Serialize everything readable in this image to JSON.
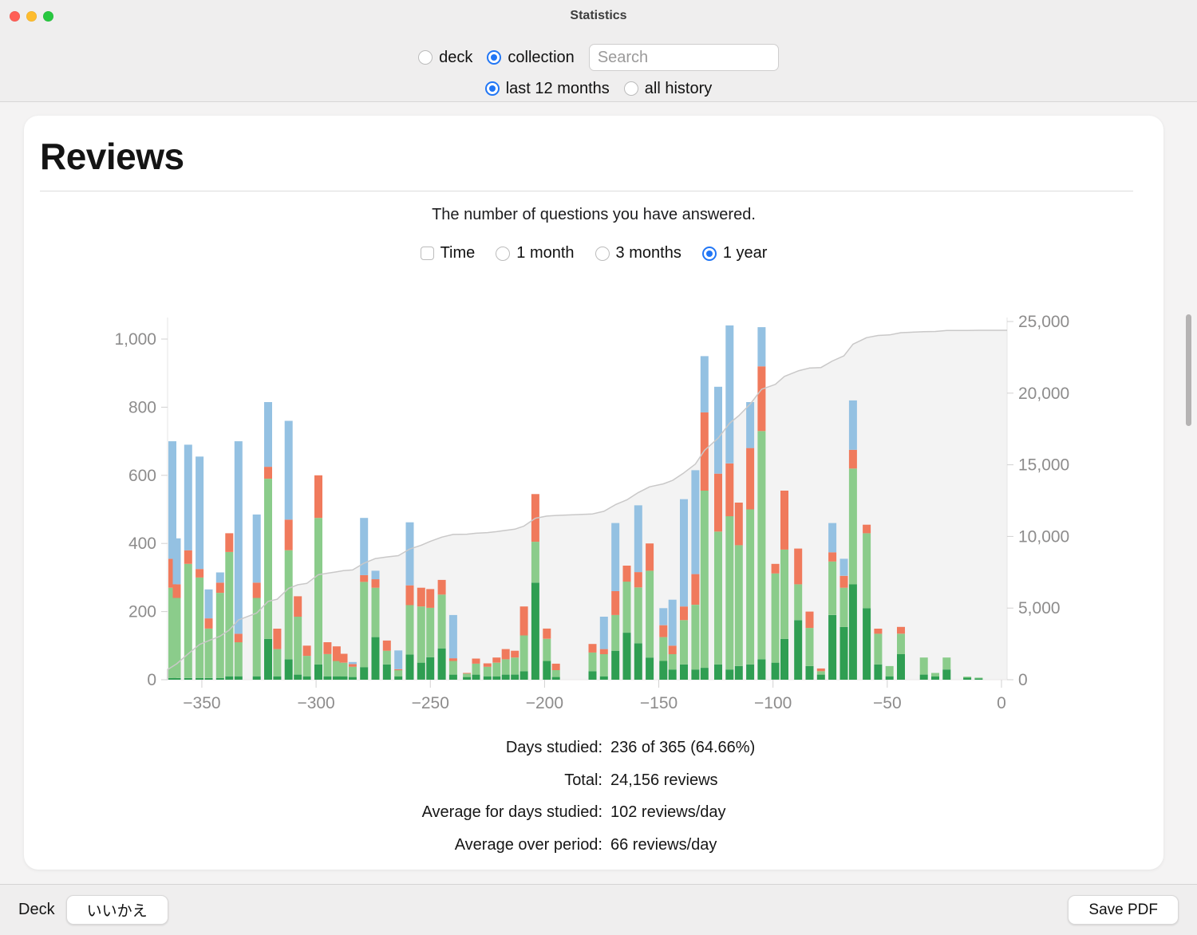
{
  "theme": {
    "accent": "#2176f5",
    "light_red": "#ff5f57",
    "light_yellow": "#febc2e",
    "light_green": "#28c840"
  },
  "window": {
    "title": "Statistics"
  },
  "toolbar": {
    "scope_options": [
      {
        "label": "deck",
        "selected": false
      },
      {
        "label": "collection",
        "selected": true
      }
    ],
    "search": {
      "placeholder": "Search",
      "value": ""
    },
    "range_options": [
      {
        "label": "last 12 months",
        "selected": true
      },
      {
        "label": "all history",
        "selected": false
      }
    ]
  },
  "card": {
    "title": "Reviews",
    "subtitle": "The number of questions you have answered.",
    "controls": {
      "time_checkbox": {
        "label": "Time",
        "checked": false
      },
      "period_options": [
        {
          "label": "1 month",
          "selected": false
        },
        {
          "label": "3 months",
          "selected": false
        },
        {
          "label": "1 year",
          "selected": true
        }
      ]
    },
    "stats": {
      "rows": [
        {
          "label": "Days studied:",
          "value": "236 of 365 (64.66%)"
        },
        {
          "label": "Total:",
          "value": "24,156 reviews"
        },
        {
          "label": "Average for days studied:",
          "value": "102 reviews/day"
        },
        {
          "label": "Average over period:",
          "value": "66 reviews/day"
        }
      ]
    }
  },
  "footer": {
    "deck_label": "Deck",
    "deck_name_button": "いいかえ",
    "save_pdf_button": "Save PDF"
  },
  "chart_data": {
    "type": "bar",
    "subtype": "stacked-bars-with-cumulative-line",
    "bar_format": [
      "day_offset",
      "mature",
      "young",
      "relearn",
      "learn"
    ],
    "series_order": [
      "mature",
      "young",
      "relearn",
      "learn"
    ],
    "series_colors": {
      "mature": "#2f9e52",
      "young": "#8bcc8b",
      "relearn": "#f07a5c",
      "learn": "#94c1e2"
    },
    "cumulative": {
      "line_color": "#c9c8c8",
      "area_fill": "#f3f3f3"
    },
    "axes": {
      "x": {
        "range": [
          -365,
          0
        ],
        "ticks": {
          "values": [
            -350,
            -300,
            -250,
            -200,
            -150,
            -100,
            -50,
            0
          ],
          "labels": [
            "−350",
            "−300",
            "−250",
            "−200",
            "−150",
            "−100",
            "−50",
            "0"
          ]
        }
      },
      "left": {
        "range": [
          0,
          1000
        ],
        "ticks": {
          "values": [
            0,
            200,
            400,
            600,
            800,
            1000
          ],
          "labels": [
            "0",
            "200",
            "400",
            "600",
            "800",
            "1,000"
          ]
        }
      },
      "right": {
        "range": [
          0,
          25000
        ],
        "ticks": {
          "values": [
            0,
            5000,
            10000,
            15000,
            20000,
            25000
          ],
          "labels": [
            "0",
            "5,000",
            "10,000",
            "15,000",
            "20,000",
            "25,000"
          ]
        }
      }
    },
    "bars": [
      [
        -365,
        5,
        265,
        85,
        345
      ],
      [
        -361,
        5,
        235,
        40,
        135
      ],
      [
        -356,
        5,
        335,
        40,
        310
      ],
      [
        -351,
        5,
        295,
        25,
        330
      ],
      [
        -347,
        5,
        145,
        30,
        85
      ],
      [
        -342,
        5,
        250,
        30,
        30
      ],
      [
        -338,
        10,
        365,
        55,
        0
      ],
      [
        -334,
        10,
        100,
        25,
        565
      ],
      [
        -326,
        10,
        230,
        45,
        200
      ],
      [
        -321,
        120,
        470,
        35,
        190
      ],
      [
        -317,
        10,
        80,
        60,
        0
      ],
      [
        -312,
        60,
        320,
        90,
        290
      ],
      [
        -308,
        15,
        170,
        60,
        0
      ],
      [
        -304,
        10,
        60,
        30,
        0
      ],
      [
        -299,
        45,
        430,
        125,
        0
      ],
      [
        -295,
        10,
        65,
        35,
        0
      ],
      [
        -291,
        10,
        45,
        43,
        0
      ],
      [
        -288,
        10,
        40,
        26,
        0
      ],
      [
        -284,
        8,
        30,
        8,
        6
      ],
      [
        -279,
        37,
        250,
        20,
        168
      ],
      [
        -274,
        125,
        145,
        25,
        25
      ],
      [
        -269,
        45,
        40,
        30,
        0
      ],
      [
        -264,
        10,
        18,
        3,
        55
      ],
      [
        -259,
        74,
        145,
        58,
        185
      ],
      [
        -254,
        50,
        165,
        55,
        0
      ],
      [
        -250,
        66,
        145,
        55,
        0
      ],
      [
        -245,
        92,
        158,
        43,
        0
      ],
      [
        -240,
        15,
        40,
        8,
        127
      ],
      [
        -234,
        8,
        10,
        2,
        0
      ],
      [
        -230,
        15,
        32,
        15,
        0
      ],
      [
        -225,
        10,
        28,
        10,
        0
      ],
      [
        -221,
        10,
        40,
        15,
        0
      ],
      [
        -217,
        15,
        45,
        30,
        0
      ],
      [
        -213,
        15,
        50,
        20,
        0
      ],
      [
        -209,
        25,
        105,
        85,
        0
      ],
      [
        -204,
        285,
        120,
        140,
        0
      ],
      [
        -199,
        55,
        65,
        30,
        0
      ],
      [
        -195,
        8,
        20,
        19,
        0
      ],
      [
        -179,
        25,
        55,
        25,
        0
      ],
      [
        -174,
        10,
        65,
        15,
        95
      ],
      [
        -169,
        85,
        105,
        70,
        200
      ],
      [
        -164,
        138,
        150,
        47,
        0
      ],
      [
        -159,
        107,
        164,
        45,
        196
      ],
      [
        -154,
        65,
        255,
        80,
        0
      ],
      [
        -148,
        55,
        70,
        35,
        50
      ],
      [
        -144,
        30,
        45,
        25,
        135
      ],
      [
        -139,
        45,
        130,
        40,
        315
      ],
      [
        -134,
        30,
        190,
        90,
        305
      ],
      [
        -130,
        35,
        520,
        230,
        165
      ],
      [
        -124,
        45,
        390,
        170,
        255
      ],
      [
        -119,
        30,
        450,
        155,
        405
      ],
      [
        -115,
        40,
        355,
        125,
        0
      ],
      [
        -110,
        45,
        455,
        180,
        135
      ],
      [
        -105,
        60,
        670,
        190,
        115
      ],
      [
        -99,
        50,
        262,
        28,
        0
      ],
      [
        -95,
        120,
        262,
        173,
        0
      ],
      [
        -89,
        175,
        105,
        105,
        0
      ],
      [
        -84,
        40,
        112,
        48,
        0
      ],
      [
        -79,
        15,
        10,
        8,
        0
      ],
      [
        -74,
        190,
        157,
        27,
        86
      ],
      [
        -69,
        155,
        115,
        35,
        50
      ],
      [
        -65,
        280,
        340,
        55,
        145
      ],
      [
        -59,
        210,
        220,
        25,
        0
      ],
      [
        -54,
        45,
        90,
        15,
        0
      ],
      [
        -49,
        10,
        30,
        0,
        0
      ],
      [
        -44,
        75,
        60,
        20,
        0
      ],
      [
        -34,
        15,
        50,
        0,
        0
      ],
      [
        -29,
        10,
        10,
        0,
        0
      ],
      [
        -24,
        30,
        35,
        0,
        0
      ],
      [
        -15,
        6,
        3,
        0,
        0
      ],
      [
        -10,
        4,
        2,
        0,
        0
      ]
    ]
  }
}
